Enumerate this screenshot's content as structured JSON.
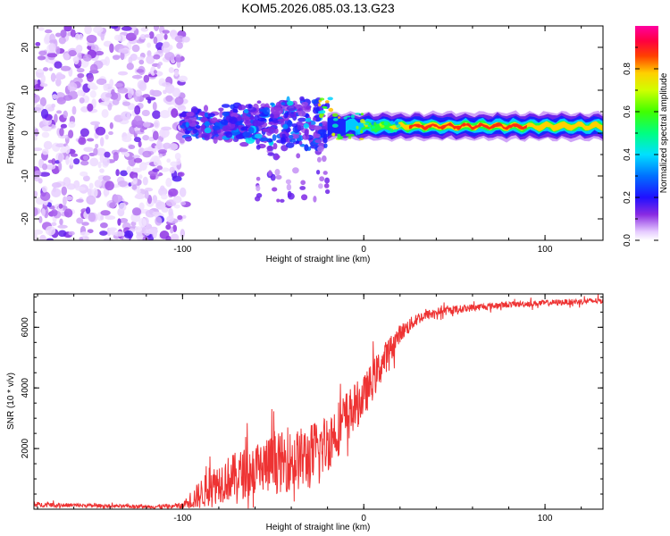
{
  "figure": {
    "title": "KOM5.2026.085.03.13.G23"
  },
  "chart_data": [
    {
      "type": "heatmap",
      "title": "KOM5.2026.085.03.13.G23",
      "xlabel": "Height of straight line (km)",
      "ylabel": "Frequency (Hz)",
      "xlim": [
        -182,
        132
      ],
      "ylim": [
        -25,
        25
      ],
      "xticks": [
        -100,
        0,
        100
      ],
      "yticks": [
        -20,
        -10,
        0,
        10,
        20
      ],
      "colorbar": {
        "label": "Normalized spectral amplitude",
        "ticks": [
          0.0,
          0.2,
          0.4,
          0.6,
          0.8
        ],
        "range": [
          0,
          1
        ],
        "colormap": "rainbow (violet → blue → cyan → green → yellow → red → magenta)"
      },
      "description_regions": [
        {
          "x_range": [
            -182,
            -100
          ],
          "freq_spread": 25,
          "amplitude": [
            0.02,
            0.18
          ],
          "pattern": "scattered noise"
        },
        {
          "x_range": [
            -100,
            -20
          ],
          "freq_spread": 8,
          "amplitude": [
            0.1,
            0.45
          ],
          "pattern": "clustered signal around 0-5 Hz"
        },
        {
          "x_range": [
            -20,
            20
          ],
          "freq_spread": 3,
          "amplitude": [
            0.3,
            0.9
          ],
          "pattern": "narrowing trace"
        },
        {
          "x_range": [
            20,
            132
          ],
          "freq_center": 1.5,
          "amplitude": [
            0.7,
            0.95
          ],
          "pattern": "steady narrow line"
        }
      ],
      "colors": {
        "background": "#ffffff",
        "frame": "#000000"
      }
    },
    {
      "type": "line",
      "xlabel": "Height of straight line (km)",
      "ylabel": "SNR (10 * v/v)",
      "xlim": [
        -182,
        132
      ],
      "ylim": [
        0,
        7100
      ],
      "xticks": [
        -100,
        0,
        100
      ],
      "yticks": [
        2000,
        4000,
        6000
      ],
      "series": [
        {
          "name": "SNR",
          "color": "#ee3333",
          "x": [
            -182,
            -150,
            -120,
            -100,
            -90,
            -80,
            -70,
            -60,
            -50,
            -40,
            -30,
            -20,
            -10,
            0,
            10,
            20,
            30,
            40,
            60,
            80,
            100,
            120,
            132
          ],
          "mean": [
            150,
            120,
            80,
            100,
            500,
            900,
            1100,
            1300,
            1500,
            1600,
            1700,
            2200,
            3000,
            3700,
            4800,
            5800,
            6300,
            6500,
            6650,
            6750,
            6800,
            6850,
            6880
          ],
          "noise": [
            80,
            60,
            50,
            120,
            500,
            700,
            800,
            900,
            1000,
            1000,
            1100,
            1000,
            900,
            700,
            600,
            300,
            200,
            150,
            120,
            100,
            100,
            100,
            100
          ]
        }
      ],
      "colors": {
        "line": "#ee3333",
        "frame": "#000000"
      }
    }
  ]
}
